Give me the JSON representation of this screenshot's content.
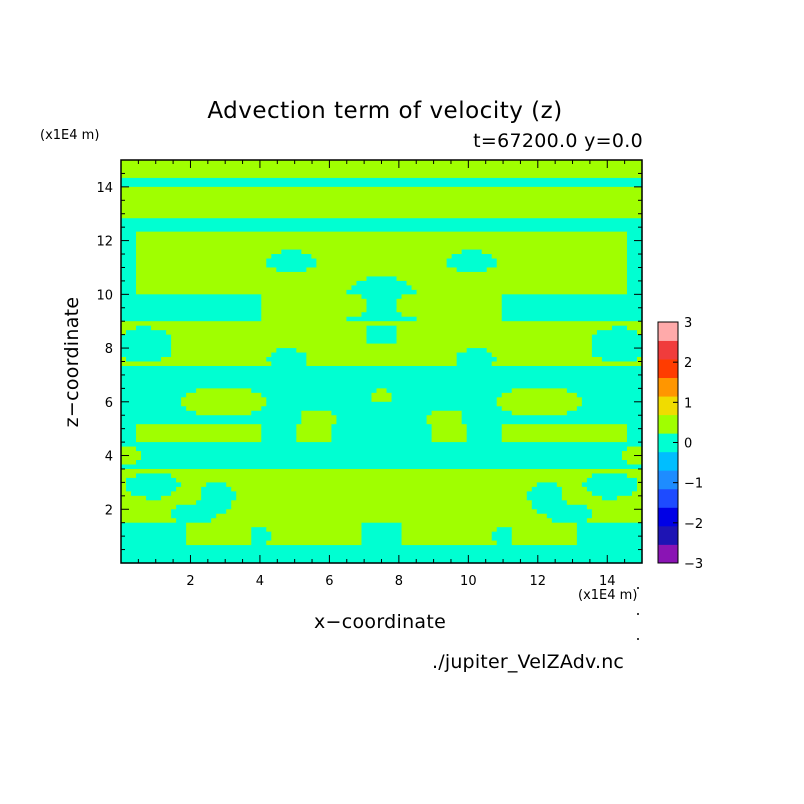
{
  "chart_data": {
    "type": "heatmap",
    "title": "Advection term of velocity (z)",
    "subtitle": "t=67200.0 y=0.0",
    "xlabel": "x−coordinate",
    "ylabel": "z−coordinate",
    "x_unit": "(x1E4 m)",
    "y_unit": "(x1E4 m)",
    "source_file": "./jupiter_VelZAdv.nc",
    "xlim": [
      0,
      15
    ],
    "ylim": [
      0,
      15
    ],
    "x_ticks": [
      2,
      4,
      6,
      8,
      10,
      12,
      14
    ],
    "y_ticks": [
      2,
      4,
      6,
      8,
      10,
      12,
      14
    ],
    "colorbar": {
      "levels": [
        -3,
        -2.5,
        -2,
        -1.5,
        -1,
        -0.5,
        0,
        0.5,
        1,
        1.5,
        2,
        2.5,
        3
      ],
      "tick_labels": [
        "−3",
        "−2",
        "−1",
        "0",
        "1",
        "2",
        "3"
      ],
      "tick_values": [
        -3,
        -2,
        -1,
        0,
        1,
        2,
        3
      ],
      "colors": [
        "#8a14b4",
        "#1e14b4",
        "#0000e6",
        "#1e4bff",
        "#1e8cff",
        "#00beff",
        "#00ffd2",
        "#a0ff00",
        "#f0dc00",
        "#ff9600",
        "#ff3c00",
        "#f03c3c",
        "#ffaaaa"
      ]
    },
    "field_classes": {
      "negative_small": {
        "range": [
          -0.5,
          0
        ],
        "color": "#00ffd2"
      },
      "positive_small": {
        "range": [
          0,
          0.5
        ],
        "color": "#a0ff00"
      }
    },
    "description_bands": [
      {
        "z": [
          0,
          0.6
        ],
        "class": "negative_small"
      },
      {
        "z": [
          0.6,
          1.4
        ],
        "class": "positive_small"
      },
      {
        "z": [
          1.4,
          2.4
        ],
        "class": "mixed"
      },
      {
        "z": [
          2.4,
          3.6
        ],
        "class": "positive_small"
      },
      {
        "z": [
          3.6,
          4.4
        ],
        "class": "negative_small"
      },
      {
        "z": [
          4.4,
          5.2
        ],
        "class": "mixed"
      },
      {
        "z": [
          5.2,
          6.8
        ],
        "class": "negative_small"
      },
      {
        "z": [
          6.8,
          7.8
        ],
        "class": "positive_small"
      },
      {
        "z": [
          7.8,
          9.0
        ],
        "class": "mixed"
      },
      {
        "z": [
          9.0,
          10.0
        ],
        "class": "negative_small"
      },
      {
        "z": [
          10.0,
          12.4
        ],
        "class": "positive_small"
      },
      {
        "z": [
          12.4,
          12.8
        ],
        "class": "negative_small"
      },
      {
        "z": [
          12.8,
          15.0
        ],
        "class": "positive_small"
      }
    ]
  }
}
